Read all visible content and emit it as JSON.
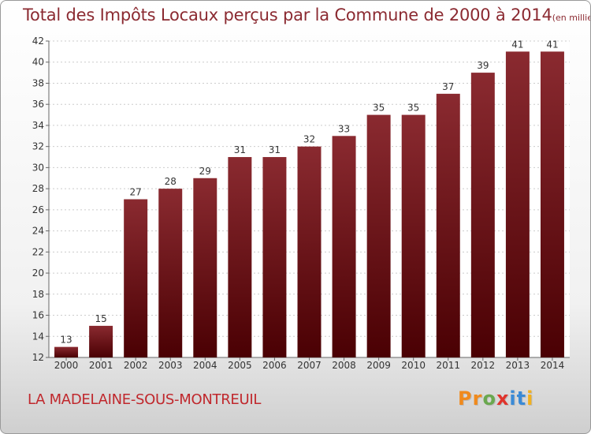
{
  "chart_data": {
    "type": "bar",
    "title": "Total des Impôts Locaux perçus par la Commune de 2000 à 2014",
    "subtitle": "(en milliers d'€)",
    "categories": [
      "2000",
      "2001",
      "2002",
      "2003",
      "2004",
      "2005",
      "2006",
      "2007",
      "2008",
      "2009",
      "2010",
      "2011",
      "2012",
      "2013",
      "2014"
    ],
    "values": [
      13,
      15,
      27,
      28,
      29,
      31,
      31,
      32,
      33,
      35,
      35,
      37,
      39,
      41,
      41
    ],
    "ylim": [
      12,
      42
    ],
    "yticks": [
      12,
      14,
      16,
      18,
      20,
      22,
      24,
      26,
      28,
      30,
      32,
      34,
      36,
      38,
      40,
      42
    ],
    "grid": true,
    "bar_color": "#7a1a20"
  },
  "commune": "LA MADELAINE-SOUS-MONTREUIL",
  "logo": {
    "letters": [
      "P",
      "r",
      "o",
      "x",
      "i",
      "t",
      "i"
    ],
    "colors": [
      "#f08a1c",
      "#f08a1c",
      "#6aa84f",
      "#e0342c",
      "#3a8ad6",
      "#3a8ad6",
      "#f2b01e"
    ]
  }
}
